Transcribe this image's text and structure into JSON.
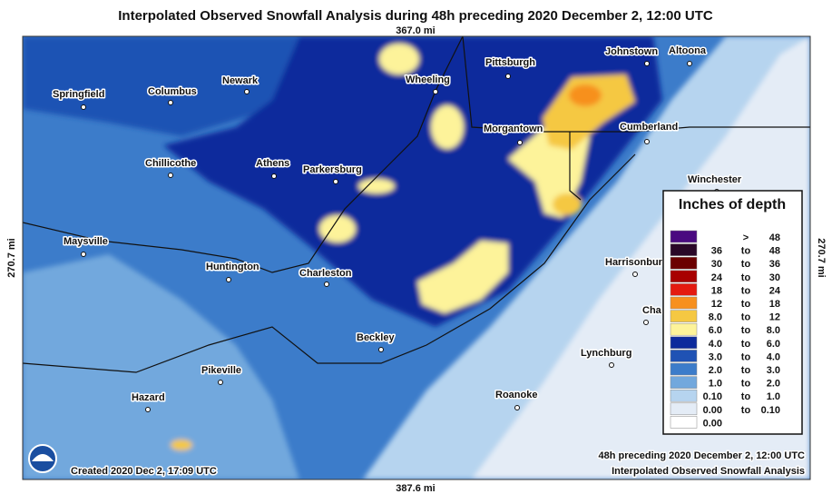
{
  "title": "Interpolated Observed Snowfall Analysis during 48h preceding 2020 December 2, 12:00 UTC",
  "distances": {
    "top": "367.0 mi",
    "bottom": "387.6 mi",
    "left": "270.7 mi",
    "right": "270.7 mi"
  },
  "cities": [
    "Springfield",
    "Columbus",
    "Newark",
    "Wheeling",
    "Pittsburgh",
    "Johnstown",
    "Altoona",
    "Morgantown",
    "Cumberland",
    "Chillicothe",
    "Athens",
    "Parkersburg",
    "Winchester",
    "Maysville",
    "Huntington",
    "Charleston",
    "Harrisonbur",
    "Cha",
    "Beckley",
    "Pikeville",
    "Lynchburg",
    "Hazard",
    "Roanoke"
  ],
  "legend": {
    "title": "Inches of depth",
    "entries": [
      {
        "color": "#4a0a80",
        "sep": ">",
        "to": "48"
      },
      {
        "color": "#2a0828",
        "from": "36",
        "sep": "to",
        "to": "48"
      },
      {
        "color": "#6b0000",
        "from": "30",
        "sep": "to",
        "to": "36"
      },
      {
        "color": "#a80000",
        "from": "24",
        "sep": "to",
        "to": "30"
      },
      {
        "color": "#e41a10",
        "from": "18",
        "sep": "to",
        "to": "24"
      },
      {
        "color": "#f7901e",
        "from": "12",
        "sep": "to",
        "to": "18"
      },
      {
        "color": "#f5c842",
        "from": "8.0",
        "sep": "to",
        "to": "12"
      },
      {
        "color": "#fdf39a",
        "from": "6.0",
        "sep": "to",
        "to": "8.0"
      },
      {
        "color": "#0c2a9c",
        "from": "4.0",
        "sep": "to",
        "to": "6.0"
      },
      {
        "color": "#1f52b4",
        "from": "3.0",
        "sep": "to",
        "to": "4.0"
      },
      {
        "color": "#3c7cca",
        "from": "2.0",
        "sep": "to",
        "to": "3.0"
      },
      {
        "color": "#72a8dd",
        "from": "1.0",
        "sep": "to",
        "to": "2.0"
      },
      {
        "color": "#b6d4ef",
        "from": "0.10",
        "sep": "to",
        "to": "1.0"
      },
      {
        "color": "#e4ecf6",
        "from": "0.00",
        "sep": "to",
        "to": "0.10"
      },
      {
        "color": "#ffffff",
        "from": "0.00"
      }
    ]
  },
  "footer": {
    "period": "48h preceding 2020 December 2, 12:00 UTC",
    "product": "Interpolated Observed Snowfall Analysis",
    "created": "Created 2020 Dec 2, 17:09 UTC"
  }
}
